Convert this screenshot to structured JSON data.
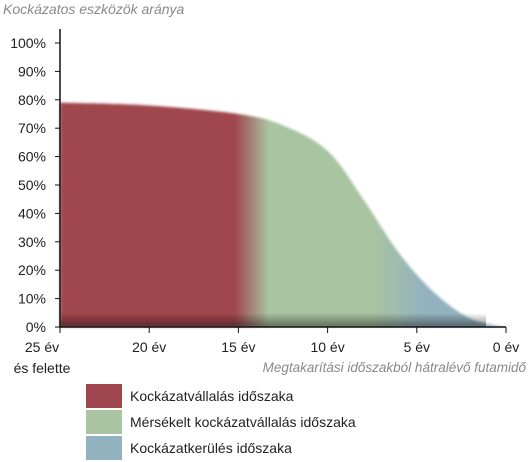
{
  "chart_data": {
    "type": "area",
    "title": "Kockázatos eszközök aránya",
    "xlabel": "Megtakarítási időszakból hátralévő futamidő",
    "ylabel": "",
    "x_tick_labels": [
      "25 év és felette",
      "20 év",
      "15 év",
      "10 év",
      "5 év",
      "0 év"
    ],
    "x_ticks": [
      25,
      20,
      15,
      10,
      5,
      0
    ],
    "y_tick_labels": [
      "0%",
      "10%",
      "20%",
      "30%",
      "40%",
      "50%",
      "60%",
      "70%",
      "80%",
      "90%",
      "100%"
    ],
    "ylim": [
      0,
      100
    ],
    "xlim": [
      25,
      0
    ],
    "x": [
      25,
      20,
      15,
      12.5,
      10,
      8,
      6,
      4,
      2,
      0
    ],
    "y": [
      79,
      78,
      75,
      71,
      62,
      45,
      26,
      12,
      3,
      0
    ],
    "regions": [
      {
        "name": "Kockázatvállalás időszaka",
        "x_from": 25,
        "x_to": 15,
        "color": "#a0464e"
      },
      {
        "name": "Mérsékelt kockázatvállalás időszaka",
        "x_from": 14,
        "x_to": 8,
        "color": "#a9c4a0"
      },
      {
        "name": "Kockázatkerülés időszaka",
        "x_from": 5,
        "x_to": 0,
        "color": "#93b2c0"
      }
    ],
    "legend_position": "bottom-left"
  },
  "legend": [
    {
      "label": "Kockázatvállalás időszaka",
      "color": "#a0464e"
    },
    {
      "label": "Mérsékelt kockázatvállalás időszaka",
      "color": "#a9c4a0"
    },
    {
      "label": "Kockázatkerülés időszaka",
      "color": "#93b2c0"
    }
  ],
  "x_first_tick": {
    "line1": "25 év",
    "line2": "és felette"
  }
}
